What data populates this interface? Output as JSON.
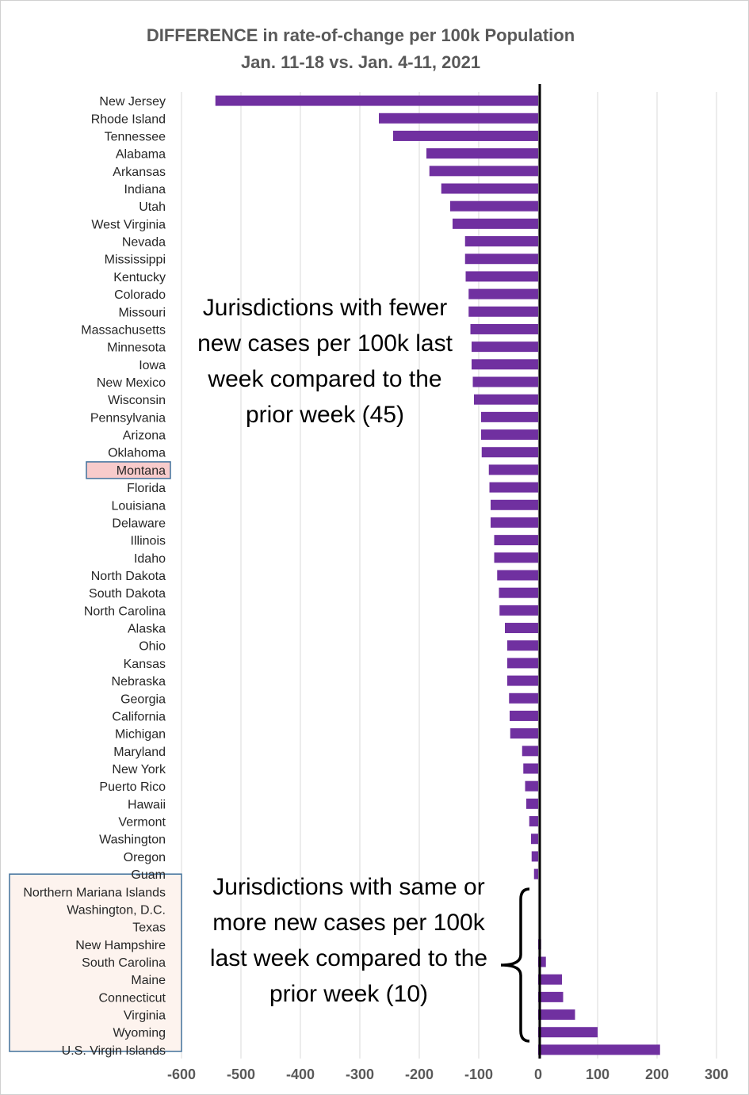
{
  "title_line1": "DIFFERENCE in rate-of-change per 100k Population",
  "title_line2": "Jan. 11-18 vs. Jan. 4-11, 2021",
  "annotation_negative": "Jurisdictions with fewer new cases per 100k last week compared to the prior week (45)",
  "annotation_positive": "Jurisdictions with same or more new cases per 100k last week compared to the prior week (10)",
  "highlight_state": "Montana",
  "colors": {
    "bar": "#7030A0",
    "grid": "#d9d9d9",
    "zero_line": "#000000",
    "highlight_fill": "#F8CBCB",
    "box_border": "#41719C",
    "box_fill": "#FDF3EE"
  },
  "chart_data": {
    "type": "bar",
    "orientation": "horizontal",
    "title": "DIFFERENCE in rate-of-change per 100k Population",
    "subtitle": "Jan. 11-18 vs. Jan. 4-11, 2021",
    "xlim": [
      -600,
      300
    ],
    "xticks": [
      -600,
      -500,
      -400,
      -300,
      -200,
      -100,
      0,
      100,
      200,
      300
    ],
    "grid": true,
    "categories": [
      "New Jersey",
      "Rhode Island",
      "Tennessee",
      "Alabama",
      "Arkansas",
      "Indiana",
      "Utah",
      "West Virginia",
      "Nevada",
      "Mississippi",
      "Kentucky",
      "Colorado",
      "Missouri",
      "Massachusetts",
      "Minnesota",
      "Iowa",
      "New Mexico",
      "Wisconsin",
      "Pennsylvania",
      "Arizona",
      "Oklahoma",
      "Montana",
      "Florida",
      "Louisiana",
      "Delaware",
      "Illinois",
      "Idaho",
      "North Dakota",
      "South Dakota",
      "North Carolina",
      "Alaska",
      "Ohio",
      "Kansas",
      "Nebraska",
      "Georgia",
      "California",
      "Michigan",
      "Maryland",
      "New York",
      "Puerto Rico",
      "Hawaii",
      "Vermont",
      "Washington",
      "Oregon",
      "Guam",
      "Northern Mariana Islands",
      "Washington, D.C.",
      "Texas",
      "New Hampshire",
      "South Carolina",
      "Maine",
      "Connecticut",
      "Virginia",
      "Wyoming",
      "U.S. Virgin Islands"
    ],
    "values": [
      -543,
      -268,
      -244,
      -188,
      -183,
      -163,
      -148,
      -144,
      -123,
      -123,
      -122,
      -117,
      -117,
      -114,
      -112,
      -112,
      -110,
      -108,
      -96,
      -96,
      -95,
      -83,
      -82,
      -80,
      -80,
      -74,
      -74,
      -69,
      -66,
      -65,
      -56,
      -52,
      -52,
      -52,
      -49,
      -48,
      -47,
      -27,
      -25,
      -22,
      -20,
      -15,
      -12,
      -11,
      -7,
      0,
      0,
      0,
      5,
      13,
      40,
      42,
      62,
      100,
      205
    ]
  }
}
